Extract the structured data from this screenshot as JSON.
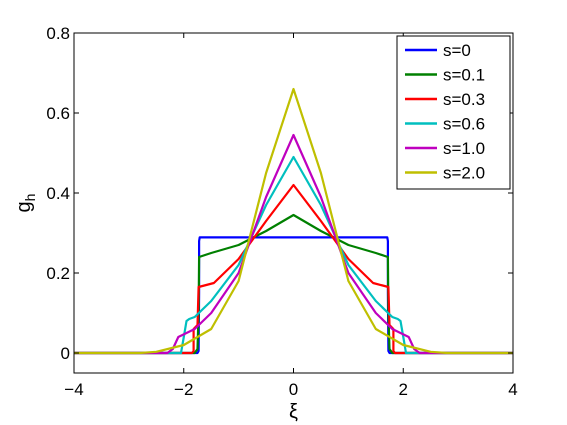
{
  "chart_data": {
    "type": "line",
    "xlabel": "ξ",
    "ylabel": "g",
    "ylabel_subscript": "h",
    "xlim": [
      -4,
      4
    ],
    "ylim": [
      -0.05,
      0.8
    ],
    "xticks": [
      -4,
      -2,
      0,
      2,
      4
    ],
    "xtick_labels": [
      "−4",
      "−2",
      "0",
      "2",
      "4"
    ],
    "yticks": [
      0,
      0.2,
      0.4,
      0.6,
      0.8
    ],
    "ytick_labels": [
      "0",
      "0.2",
      "0.4",
      "0.6",
      "0.8"
    ],
    "grid": false,
    "legend_position": "top-right",
    "series": [
      {
        "name": "s=0",
        "color": "#0000ff",
        "x": [
          -4,
          -1.75,
          -1.73,
          -1.72,
          -1.72,
          -1.71,
          1.71,
          1.72,
          1.72,
          1.73,
          1.75,
          4
        ],
        "y": [
          0,
          0,
          0.005,
          0.15,
          0.28,
          0.289,
          0.289,
          0.28,
          0.15,
          0.005,
          0,
          0
        ]
      },
      {
        "name": "s=0.1",
        "color": "#008000",
        "x": [
          -4,
          -1.8,
          -1.75,
          -1.73,
          -1.72,
          -1.5,
          -1.0,
          -0.5,
          0,
          0.5,
          1.0,
          1.5,
          1.72,
          1.73,
          1.75,
          1.8,
          4
        ],
        "y": [
          0,
          0,
          0.01,
          0.1,
          0.24,
          0.25,
          0.27,
          0.305,
          0.345,
          0.305,
          0.27,
          0.25,
          0.24,
          0.1,
          0.01,
          0,
          0
        ]
      },
      {
        "name": "s=0.3",
        "color": "#ff0000",
        "x": [
          -4,
          -1.85,
          -1.82,
          -1.82,
          -1.75,
          -1.73,
          -1.45,
          -1.0,
          -0.5,
          0,
          0.5,
          1.0,
          1.45,
          1.73,
          1.75,
          1.82,
          1.82,
          1.85,
          4
        ],
        "y": [
          0,
          0,
          0.005,
          0.06,
          0.07,
          0.165,
          0.175,
          0.235,
          0.33,
          0.42,
          0.33,
          0.235,
          0.175,
          0.165,
          0.07,
          0.06,
          0.005,
          0,
          0
        ]
      },
      {
        "name": "s=0.6",
        "color": "#00bfbf",
        "x": [
          -4,
          -2.05,
          -2.0,
          -1.95,
          -1.9,
          -1.8,
          -1.5,
          -1.0,
          -0.5,
          0,
          0.5,
          1.0,
          1.5,
          1.8,
          1.9,
          1.95,
          2.0,
          2.05,
          4
        ],
        "y": [
          0,
          0,
          0.04,
          0.08,
          0.085,
          0.09,
          0.13,
          0.22,
          0.37,
          0.49,
          0.37,
          0.22,
          0.13,
          0.09,
          0.085,
          0.08,
          0.04,
          0,
          0
        ]
      },
      {
        "name": "s=1.0",
        "color": "#bf00bf",
        "x": [
          -4,
          -2.3,
          -2.2,
          -2.1,
          -1.8,
          -1.5,
          -1.0,
          -0.5,
          0,
          0.5,
          1.0,
          1.5,
          1.8,
          2.1,
          2.2,
          2.3,
          4
        ],
        "y": [
          0,
          0,
          0.01,
          0.04,
          0.06,
          0.1,
          0.2,
          0.39,
          0.545,
          0.39,
          0.2,
          0.1,
          0.06,
          0.04,
          0.01,
          0,
          0
        ]
      },
      {
        "name": "s=2.0",
        "color": "#bfbf00",
        "x": [
          -4,
          -2.8,
          -2.5,
          -2.0,
          -1.5,
          -1.0,
          -0.5,
          0,
          0.5,
          1.0,
          1.5,
          2.0,
          2.5,
          2.8,
          4
        ],
        "y": [
          0,
          0,
          0.003,
          0.02,
          0.06,
          0.18,
          0.45,
          0.66,
          0.45,
          0.18,
          0.06,
          0.02,
          0.003,
          0,
          0
        ]
      }
    ]
  }
}
